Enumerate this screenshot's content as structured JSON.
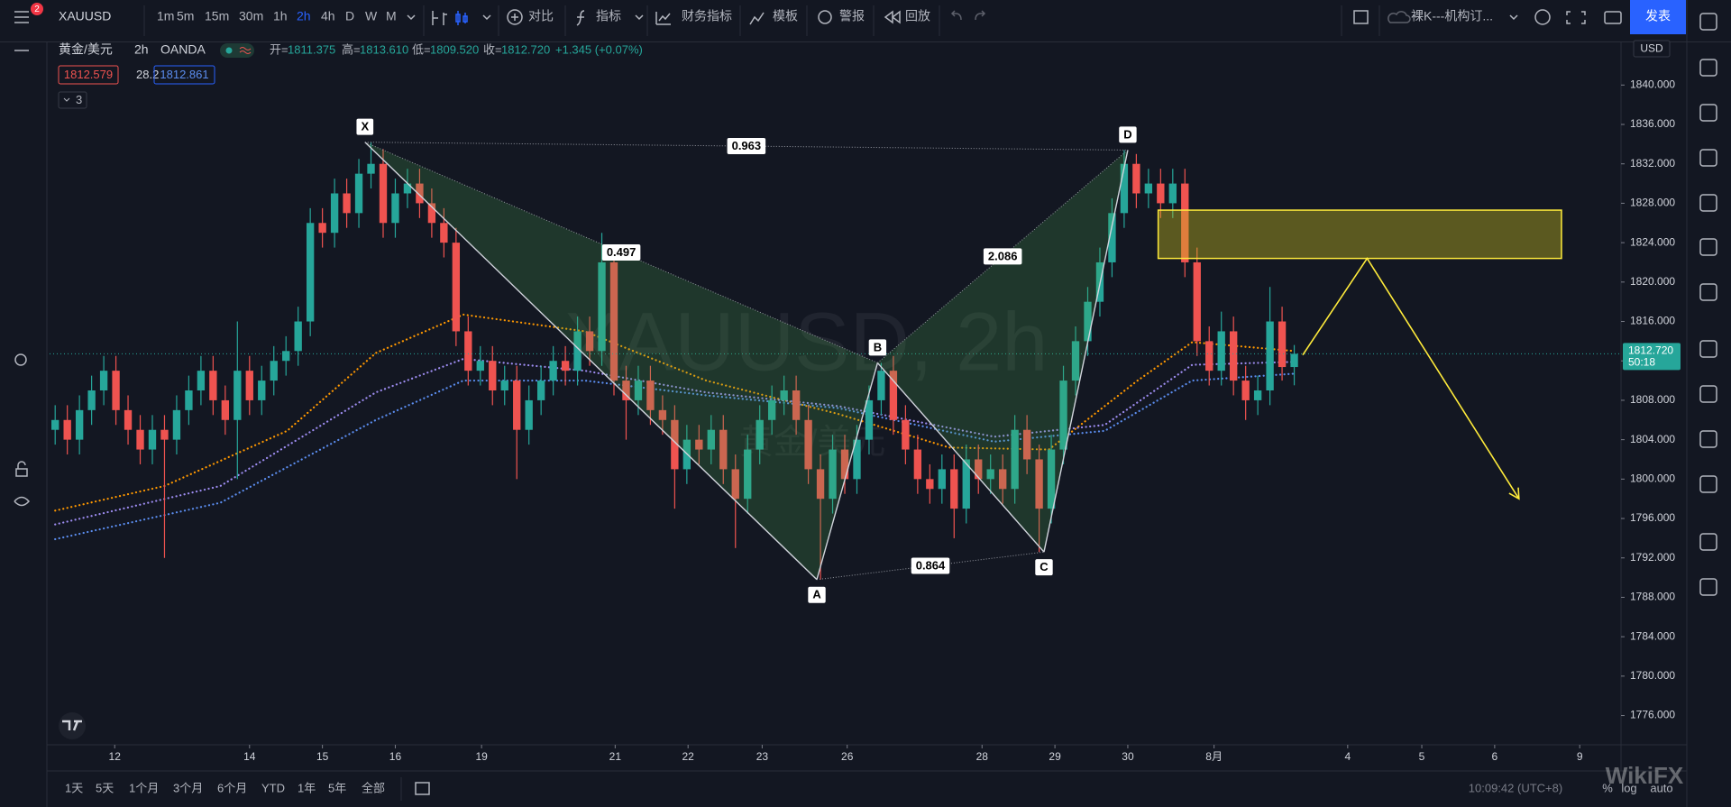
{
  "toolbar": {
    "badge": "2",
    "symbol": "XAUUSD",
    "intervals": [
      "1m",
      "5m",
      "15m",
      "30m",
      "1h",
      "2h",
      "4h",
      "D",
      "W",
      "M"
    ],
    "compare": "对比",
    "indicators": "指标",
    "financials": "财务指标",
    "templates": "模板",
    "alerts": "警报",
    "replay": "回放",
    "layout": "裸K---机构订...",
    "publish": "发表"
  },
  "legend": {
    "name": "黄金/美元",
    "interval": "2h",
    "exchange": "OANDA",
    "open_label": "开=",
    "open": "1811.375",
    "high_label": "高=",
    "high": "1813.610",
    "low_label": "低=",
    "low": "1809.520",
    "close_label": "收=",
    "close": "1812.720",
    "change": "+1.345 (+0.07%)",
    "bid": "1812.579",
    "spread": "28.2",
    "ask": "1812.861",
    "indicators_count": "3"
  },
  "watermark": {
    "symbol": "XAUUSD, 2h",
    "name": "黄金/美元"
  },
  "chart_data": {
    "type": "candlestick",
    "up_color": "#26a69a",
    "down_color": "#ef5350",
    "grid": false,
    "currency": "USD",
    "xlim": [
      -0.46,
      128.9
    ],
    "ylim": [
      1773.03,
      1844.33
    ],
    "yticks": [
      {
        "value": 1776,
        "label": "1776.000"
      },
      {
        "value": 1780,
        "label": "1780.000"
      },
      {
        "value": 1784,
        "label": "1784.000"
      },
      {
        "value": 1788,
        "label": "1788.000"
      },
      {
        "value": 1792,
        "label": "1792.000"
      },
      {
        "value": 1796,
        "label": "1796.000"
      },
      {
        "value": 1800,
        "label": "1800.000"
      },
      {
        "value": 1804,
        "label": "1804.000"
      },
      {
        "value": 1808,
        "label": "1808.000"
      },
      {
        "value": 1812,
        "label": "1812.000"
      },
      {
        "value": 1816,
        "label": "1816.000"
      },
      {
        "value": 1820,
        "label": "1820.000"
      },
      {
        "value": 1824,
        "label": "1824.000"
      },
      {
        "value": 1828,
        "label": "1828.000"
      },
      {
        "value": 1832,
        "label": "1832.000"
      },
      {
        "value": 1836,
        "label": "1836.000"
      },
      {
        "value": 1840,
        "label": "1840.000"
      }
    ],
    "xticks": [
      {
        "value": 4.9,
        "label": "12"
      },
      {
        "value": 16,
        "label": "14"
      },
      {
        "value": 22,
        "label": "15"
      },
      {
        "value": 28,
        "label": "16"
      },
      {
        "value": 35.1,
        "label": "19"
      },
      {
        "value": 46.1,
        "label": "21"
      },
      {
        "value": 52.1,
        "label": "22"
      },
      {
        "value": 58.2,
        "label": "23"
      },
      {
        "value": 65.2,
        "label": "26"
      },
      {
        "value": 76.3,
        "label": "28"
      },
      {
        "value": 82.3,
        "label": "29"
      },
      {
        "value": 88.3,
        "label": "30"
      },
      {
        "value": 95.4,
        "label": "8月"
      },
      {
        "value": 106.4,
        "label": "4"
      },
      {
        "value": 112.5,
        "label": "5"
      },
      {
        "value": 118.5,
        "label": "6"
      },
      {
        "value": 125.5,
        "label": "9"
      }
    ],
    "candles": [
      [
        1805,
        1807.5,
        1803.5,
        1806
      ],
      [
        1806,
        1807.5,
        1802.5,
        1804
      ],
      [
        1804,
        1808.5,
        1802.5,
        1807
      ],
      [
        1807,
        1810.5,
        1805.5,
        1809
      ],
      [
        1809,
        1812.5,
        1807.5,
        1811
      ],
      [
        1811,
        1812.5,
        1805.5,
        1807
      ],
      [
        1807,
        1808.5,
        1803.5,
        1805
      ],
      [
        1805,
        1806.5,
        1801.5,
        1803
      ],
      [
        1803,
        1806.5,
        1801.5,
        1805
      ],
      [
        1805,
        1806.5,
        1792,
        1804
      ],
      [
        1804,
        1808.5,
        1802.5,
        1807
      ],
      [
        1807,
        1810.5,
        1805.5,
        1809
      ],
      [
        1809,
        1812.5,
        1807.5,
        1811
      ],
      [
        1811,
        1812.5,
        1806.5,
        1808
      ],
      [
        1808,
        1809.5,
        1804.5,
        1806
      ],
      [
        1806,
        1816,
        1800,
        1811
      ],
      [
        1811,
        1812.5,
        1806.5,
        1808
      ],
      [
        1808,
        1811.5,
        1806.5,
        1810
      ],
      [
        1810,
        1813.5,
        1808.5,
        1812
      ],
      [
        1812,
        1814.5,
        1810.5,
        1813
      ],
      [
        1813,
        1817.5,
        1811.5,
        1816
      ],
      [
        1816,
        1827.5,
        1814.5,
        1826
      ],
      [
        1826,
        1827.5,
        1823.5,
        1825
      ],
      [
        1825,
        1830.5,
        1823.5,
        1829
      ],
      [
        1829,
        1830.5,
        1825.5,
        1827
      ],
      [
        1827,
        1832.5,
        1825.5,
        1831
      ],
      [
        1831,
        1834.2,
        1829.5,
        1832
      ],
      [
        1832,
        1833.5,
        1824.5,
        1826
      ],
      [
        1826,
        1830.5,
        1824.5,
        1829
      ],
      [
        1829,
        1831.5,
        1827.5,
        1830
      ],
      [
        1830,
        1831.5,
        1826.5,
        1828
      ],
      [
        1828,
        1829.5,
        1824.5,
        1826
      ],
      [
        1826,
        1827.5,
        1822.5,
        1824
      ],
      [
        1824,
        1825.5,
        1813.5,
        1815
      ],
      [
        1815,
        1816.5,
        1809.5,
        1811
      ],
      [
        1811,
        1813.5,
        1809.5,
        1812
      ],
      [
        1812,
        1813.5,
        1807.5,
        1809
      ],
      [
        1809,
        1811.5,
        1807.5,
        1810
      ],
      [
        1810,
        1811.5,
        1800,
        1805
      ],
      [
        1805,
        1809.5,
        1803.5,
        1808
      ],
      [
        1808,
        1811.5,
        1806.5,
        1810
      ],
      [
        1810,
        1813.5,
        1808.5,
        1812
      ],
      [
        1812,
        1813.5,
        1809.5,
        1811
      ],
      [
        1811,
        1816.5,
        1809.5,
        1815
      ],
      [
        1815,
        1816.5,
        1811.5,
        1813
      ],
      [
        1813,
        1825,
        1811.5,
        1822
      ],
      [
        1822,
        1823.5,
        1808.5,
        1810
      ],
      [
        1810,
        1811.5,
        1804,
        1808
      ],
      [
        1808,
        1811.5,
        1806.5,
        1810
      ],
      [
        1810,
        1811.5,
        1805.5,
        1807
      ],
      [
        1807,
        1808.5,
        1804.5,
        1806
      ],
      [
        1806,
        1807.5,
        1797,
        1801
      ],
      [
        1801,
        1805.5,
        1799.5,
        1804
      ],
      [
        1804,
        1805.5,
        1801.5,
        1803
      ],
      [
        1803,
        1806.5,
        1801.5,
        1805
      ],
      [
        1805,
        1806.5,
        1799.5,
        1801
      ],
      [
        1801,
        1802.5,
        1793,
        1798
      ],
      [
        1798,
        1804.5,
        1796.5,
        1803
      ],
      [
        1803,
        1807.5,
        1801.5,
        1806
      ],
      [
        1806,
        1809.5,
        1804.5,
        1808
      ],
      [
        1808,
        1810.5,
        1806.5,
        1809
      ],
      [
        1809,
        1810.5,
        1804.5,
        1806
      ],
      [
        1806,
        1807.5,
        1799.5,
        1801
      ],
      [
        1801,
        1802.5,
        1789.8,
        1798
      ],
      [
        1798,
        1804.5,
        1796.5,
        1803
      ],
      [
        1803,
        1804.5,
        1798.5,
        1800
      ],
      [
        1800,
        1805.5,
        1798.5,
        1804
      ],
      [
        1804,
        1809.5,
        1802.5,
        1808
      ],
      [
        1808,
        1811.8,
        1806.5,
        1811
      ],
      [
        1811,
        1812.5,
        1804.5,
        1806
      ],
      [
        1806,
        1807.5,
        1801.5,
        1803
      ],
      [
        1803,
        1804.5,
        1798.5,
        1800
      ],
      [
        1800,
        1801.5,
        1797.5,
        1799
      ],
      [
        1799,
        1802.5,
        1797.5,
        1801
      ],
      [
        1801,
        1802.5,
        1794,
        1797
      ],
      [
        1797,
        1803.5,
        1795.5,
        1802
      ],
      [
        1802,
        1803.5,
        1798.5,
        1800
      ],
      [
        1800,
        1802.5,
        1798.5,
        1801
      ],
      [
        1801,
        1802.5,
        1797.5,
        1799
      ],
      [
        1799,
        1806.5,
        1797.5,
        1805
      ],
      [
        1805,
        1806.5,
        1800.5,
        1802
      ],
      [
        1802,
        1803.5,
        1792.6,
        1797
      ],
      [
        1797,
        1804.5,
        1795.5,
        1803
      ],
      [
        1803,
        1811.5,
        1801.5,
        1810
      ],
      [
        1810,
        1815.5,
        1808.5,
        1814
      ],
      [
        1814,
        1819.5,
        1812.5,
        1818
      ],
      [
        1818,
        1823.5,
        1816.5,
        1822
      ],
      [
        1822,
        1828.5,
        1820.5,
        1827
      ],
      [
        1827,
        1833.4,
        1825.5,
        1832
      ],
      [
        1832,
        1833,
        1827.5,
        1829
      ],
      [
        1829,
        1831.5,
        1827.5,
        1830
      ],
      [
        1830,
        1831.5,
        1826.5,
        1828
      ],
      [
        1828,
        1831.5,
        1826.5,
        1830
      ],
      [
        1830,
        1831.5,
        1820.5,
        1822
      ],
      [
        1822,
        1823.5,
        1812.5,
        1814
      ],
      [
        1814,
        1815.5,
        1809.5,
        1811
      ],
      [
        1811,
        1817,
        1809.5,
        1815
      ],
      [
        1815,
        1816.5,
        1808.5,
        1810
      ],
      [
        1810,
        1811.5,
        1806,
        1808
      ],
      [
        1808,
        1810.5,
        1806.5,
        1809
      ],
      [
        1809,
        1819.5,
        1807.5,
        1816
      ],
      [
        1816,
        1817.5,
        1810,
        1811.375
      ],
      [
        1811.375,
        1813.61,
        1809.52,
        1812.72
      ]
    ],
    "series": [
      {
        "color": "#ff9800",
        "x": [
          0,
          9,
          19.1,
          26.4,
          33.6,
          43.6,
          53.6,
          64.5,
          73.6,
          81.8,
          89.1,
          93.6,
          102
        ],
        "values": [
          1796.8,
          1799.3,
          1804.9,
          1812.8,
          1816.7,
          1815,
          1810,
          1806.6,
          1803.2,
          1803,
          1810,
          1813.9,
          1813
        ]
      },
      {
        "color": "#9d8cf0",
        "x": [
          0,
          13.6,
          26.4,
          33.6,
          43.6,
          53.6,
          64.5,
          77.3,
          86.4,
          93.6,
          102
        ],
        "values": [
          1795.4,
          1799.3,
          1808.8,
          1812.2,
          1811,
          1808.8,
          1807.4,
          1804.3,
          1805.5,
          1811.6,
          1811.9
        ]
      },
      {
        "color": "#5b8def",
        "x": [
          0,
          13.6,
          26.4,
          33.6,
          43.6,
          53.6,
          64.5,
          77.3,
          86.4,
          93.6,
          102
        ],
        "values": [
          1793.9,
          1797.6,
          1806,
          1810,
          1810,
          1808.5,
          1807.2,
          1803.8,
          1804.9,
          1810,
          1810.7
        ]
      }
    ],
    "last_price_label": "1812.720",
    "countdown": "50:18",
    "pattern": {
      "points": [
        {
          "label": "X",
          "x": 25.5,
          "y": 1834.2
        },
        {
          "label": "A",
          "x": 62.7,
          "y": 1789.8
        },
        {
          "label": "B",
          "x": 67.7,
          "y": 1811.8
        },
        {
          "label": "C",
          "x": 81.4,
          "y": 1792.6
        },
        {
          "label": "D",
          "x": 88.3,
          "y": 1833.4
        }
      ],
      "ratios": [
        "0.963",
        "0.497",
        "2.086",
        "0.864"
      ]
    },
    "zone": {
      "x": [
        90.8,
        124.0
      ],
      "y": [
        1822.4,
        1827.3
      ],
      "color": "#ffeb3b"
    },
    "projection": {
      "x": [
        102.7,
        108,
        120.5
      ],
      "y": [
        1812.6,
        1822.4,
        1798
      ],
      "color": "#ffeb3b"
    }
  },
  "bottom_bar": {
    "ranges": [
      "1天",
      "5天",
      "1个月",
      "3个月",
      "6个月",
      "YTD",
      "1年",
      "5年",
      "全部"
    ],
    "time": "10:09:42 (UTC+8)",
    "percent": "%",
    "log": "log",
    "auto": "auto",
    "brand": "WikiFX"
  }
}
